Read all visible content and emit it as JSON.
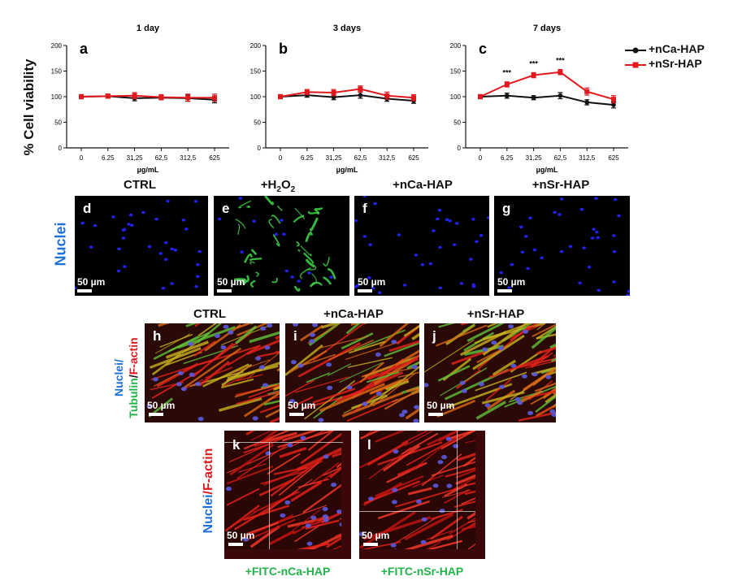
{
  "charts": {
    "ylabel": "% Cell viability",
    "xlabel": "µg/mL",
    "legend": [
      {
        "name": "+nCa-HAP",
        "color": "#111111"
      },
      {
        "name": "+nSr-HAP",
        "color": "#e0191e"
      }
    ]
  },
  "chart_data": [
    {
      "type": "line",
      "panel": "a",
      "title": "1 day",
      "categories": [
        "0",
        "6.25",
        "31,25",
        "62,5",
        "312,5",
        "625"
      ],
      "ylim": [
        0,
        200
      ],
      "yticks": [
        "0",
        "50",
        "100",
        "150",
        "200"
      ],
      "xlabel": "µg/mL",
      "ylabel": "% Cell viability",
      "series": [
        {
          "name": "+nCa-HAP",
          "values": [
            100,
            101,
            97,
            98,
            97,
            94
          ],
          "errors": [
            4,
            4,
            5,
            4,
            6,
            6
          ]
        },
        {
          "name": "+nSr-HAP",
          "values": [
            100,
            101,
            102,
            99,
            98,
            98
          ],
          "errors": [
            4,
            4,
            6,
            5,
            7,
            7
          ]
        }
      ],
      "annotations": []
    },
    {
      "type": "line",
      "panel": "b",
      "title": "3 days",
      "categories": [
        "0",
        "6.25",
        "31,25",
        "62,5",
        "312,5",
        "625"
      ],
      "ylim": [
        0,
        200
      ],
      "yticks": [
        "0",
        "50",
        "100",
        "150",
        "200"
      ],
      "xlabel": "µg/mL",
      "ylabel": "% Cell viability",
      "series": [
        {
          "name": "+nCa-HAP",
          "values": [
            100,
            103,
            99,
            103,
            96,
            92
          ],
          "errors": [
            4,
            4,
            5,
            6,
            5,
            5
          ]
        },
        {
          "name": "+nSr-HAP",
          "values": [
            100,
            109,
            108,
            115,
            102,
            98
          ],
          "errors": [
            4,
            5,
            6,
            6,
            7,
            6
          ]
        }
      ],
      "annotations": []
    },
    {
      "type": "line",
      "panel": "c",
      "title": "7 days",
      "categories": [
        "0",
        "6.25",
        "31,25",
        "62,5",
        "312,5",
        "625"
      ],
      "ylim": [
        0,
        200
      ],
      "yticks": [
        "0",
        "50",
        "100",
        "150",
        "200"
      ],
      "xlabel": "µg/mL",
      "ylabel": "% Cell viability",
      "series": [
        {
          "name": "+nCa-HAP",
          "values": [
            100,
            102,
            98,
            102,
            89,
            84
          ],
          "errors": [
            4,
            5,
            4,
            6,
            5,
            6
          ]
        },
        {
          "name": "+nSr-HAP",
          "values": [
            100,
            124,
            142,
            148,
            110,
            95
          ],
          "errors": [
            4,
            5,
            5,
            5,
            7,
            7
          ]
        }
      ],
      "annotations": [
        {
          "category": "6.25",
          "text": "***"
        },
        {
          "category": "31,25",
          "text": "***"
        },
        {
          "category": "62,5",
          "text": "***"
        }
      ]
    }
  ],
  "row2": {
    "side_label": "Nuclei",
    "panels": [
      {
        "letter": "d",
        "title": "CTRL",
        "scale": "50 µm"
      },
      {
        "letter": "e",
        "title": "+H₂O₂",
        "scale": "50 µm"
      },
      {
        "letter": "f",
        "title": "+nCa-HAP",
        "scale": "50 µm"
      },
      {
        "letter": "g",
        "title": "+nSr-HAP",
        "scale": "50 µm"
      }
    ]
  },
  "row3": {
    "side_label": {
      "nuclei": "Nuclei/",
      "tubulin": "Tubulin",
      "slash": "/",
      "factin": "F-actin"
    },
    "panels": [
      {
        "letter": "h",
        "title": "CTRL",
        "scale": "50 µm"
      },
      {
        "letter": "i",
        "title": "+nCa-HAP",
        "scale": "50 µm"
      },
      {
        "letter": "j",
        "title": "+nSr-HAP",
        "scale": "50 µm"
      }
    ]
  },
  "row4": {
    "side_label": {
      "nuclei": "Nuclei",
      "factin": "/F-actin"
    },
    "panels": [
      {
        "letter": "k",
        "caption": "+FITC-nCa-HAP",
        "scale": "50 µm"
      },
      {
        "letter": "l",
        "caption": "+FITC-nSr-HAP",
        "scale": "50 µm"
      }
    ]
  },
  "colors": {
    "nuclei_blue": "#1e6fd9",
    "tubulin_green": "#22b34a",
    "factin_red": "#e0191e"
  }
}
